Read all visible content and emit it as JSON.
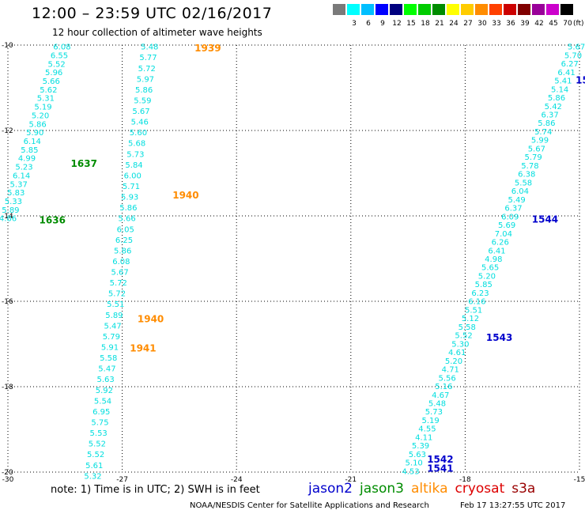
{
  "header": {
    "title": "12:00 – 23:59 UTC 02/16/2017",
    "subtitle": "12 hour collection of altimeter wave heights"
  },
  "legend": {
    "bins": [
      {
        "label": "",
        "color": "#7a7a7a"
      },
      {
        "label": "3",
        "color": "#00ffff"
      },
      {
        "label": "6",
        "color": "#00bfff"
      },
      {
        "label": "9",
        "color": "#0000ff"
      },
      {
        "label": "12",
        "color": "#00007f"
      },
      {
        "label": "15",
        "color": "#00ff00"
      },
      {
        "label": "18",
        "color": "#00cc00"
      },
      {
        "label": "21",
        "color": "#008c00"
      },
      {
        "label": "24",
        "color": "#ffff00"
      },
      {
        "label": "27",
        "color": "#ffcc00"
      },
      {
        "label": "30",
        "color": "#ff8c00"
      },
      {
        "label": "33",
        "color": "#ff4000"
      },
      {
        "label": "36",
        "color": "#cc0000"
      },
      {
        "label": "39",
        "color": "#800000"
      },
      {
        "label": "42",
        "color": "#990099"
      },
      {
        "label": "45",
        "color": "#cc00cc"
      },
      {
        "label": "70",
        "color": "#000000"
      }
    ],
    "unit": "(ft)"
  },
  "map": {
    "lon_range": [
      -30,
      -15
    ],
    "lat_range": [
      -20,
      -10
    ],
    "x_ticks": [
      "-30",
      "-27",
      "-24",
      "-21",
      "-18",
      "-15"
    ],
    "y_ticks": [
      "-10",
      "-12",
      "-14",
      "-16",
      "-18",
      "-20"
    ],
    "grid": "dotted"
  },
  "tracks": [
    {
      "color": "#00dede",
      "start": [
        -28.58,
        -10.03
      ],
      "end": [
        -30.0,
        -14.05
      ],
      "values": [
        "6.08",
        "6.55",
        "5.52",
        "5.96",
        "5.66",
        "5.62",
        "5.31",
        "5.19",
        "5.20",
        "5.86",
        "5.90",
        "6.14",
        "5.85",
        "4.99",
        "5.23",
        "6.14",
        "5.37",
        "5.83",
        "5.33",
        "5.89",
        "4.86"
      ]
    },
    {
      "color": "#00dede",
      "start": [
        -26.28,
        -10.03
      ],
      "end": [
        -27.77,
        -20.08
      ],
      "values": [
        "5.48",
        "5.77",
        "5.72",
        "5.97",
        "5.86",
        "5.59",
        "5.67",
        "5.46",
        "5.60",
        "5.68",
        "5.73",
        "5.84",
        "6.00",
        "5.71",
        "5.93",
        "5.86",
        "5.66",
        "6.05",
        "6.25",
        "5.86",
        "6.08",
        "5.67",
        "5.72",
        "5.72",
        "5.51",
        "5.89",
        "5.47",
        "5.79",
        "5.91",
        "5.58",
        "5.47",
        "5.63",
        "5.92",
        "5.54",
        "6.95",
        "5.75",
        "5.53",
        "5.52",
        "5.52",
        "5.61",
        "5.32"
      ]
    },
    {
      "color": "#00dede",
      "start": [
        -15.08,
        -10.03
      ],
      "end": [
        -19.43,
        -19.97
      ],
      "values": [
        "5.67",
        "5.70",
        "6.27",
        "6.41",
        "5.41",
        "5.14",
        "5.86",
        "5.42",
        "6.37",
        "5.86",
        "5.74",
        "5.99",
        "5.67",
        "5.79",
        "5.78",
        "6.38",
        "5.58",
        "6.04",
        "5.49",
        "6.37",
        "6.09",
        "5.69",
        "7.04",
        "6.26",
        "6.41",
        "4.98",
        "5.65",
        "5.20",
        "5.85",
        "6.23",
        "6.16",
        "5.51",
        "5.12",
        "5.58",
        "5.52",
        "5.30",
        "4.61",
        "5.20",
        "4.71",
        "5.56",
        "5.16",
        "4.67",
        "5.48",
        "5.73",
        "5.19",
        "4.55",
        "4.11",
        "5.39",
        "5.63",
        "5.10",
        "4.53"
      ]
    }
  ],
  "time_labels": [
    {
      "text": "1637",
      "color": "#008c00",
      "lon": -28.35,
      "lat": -12.78
    },
    {
      "text": "1636",
      "color": "#008c00",
      "lon": -29.18,
      "lat": -14.1
    },
    {
      "text": "1939",
      "color": "#ff8c00",
      "lon": -25.1,
      "lat": -10.07
    },
    {
      "text": "1940",
      "color": "#ff8c00",
      "lon": -25.68,
      "lat": -13.52
    },
    {
      "text": "1940",
      "color": "#ff8c00",
      "lon": -26.6,
      "lat": -16.42
    },
    {
      "text": "1941",
      "color": "#ff8c00",
      "lon": -26.8,
      "lat": -17.1
    },
    {
      "text": "15",
      "color": "#0000cc",
      "lon": -15.1,
      "lat": -10.82
    },
    {
      "text": "1544",
      "color": "#0000cc",
      "lon": -16.25,
      "lat": -14.08
    },
    {
      "text": "1543",
      "color": "#0000cc",
      "lon": -17.45,
      "lat": -16.85
    },
    {
      "text": "1542",
      "color": "#0000cc",
      "lon": -19.0,
      "lat": -19.7
    },
    {
      "text": "1541",
      "color": "#0000cc",
      "lon": -19.0,
      "lat": -19.92
    }
  ],
  "footer": {
    "note": "note:  1) Time is in UTC;  2) SWH is in feet",
    "missions": [
      {
        "name": "jason2",
        "color": "#0000cc"
      },
      {
        "name": "jason3",
        "color": "#008c00"
      },
      {
        "name": "altika",
        "color": "#ff8c00"
      },
      {
        "name": "cryosat",
        "color": "#dd0000"
      },
      {
        "name": "s3a",
        "color": "#990000"
      }
    ],
    "credit": "NOAA/NESDIS Center for Satellite Applications and Research",
    "timestamp": "Feb 17 13:27:55 UTC 2017"
  }
}
